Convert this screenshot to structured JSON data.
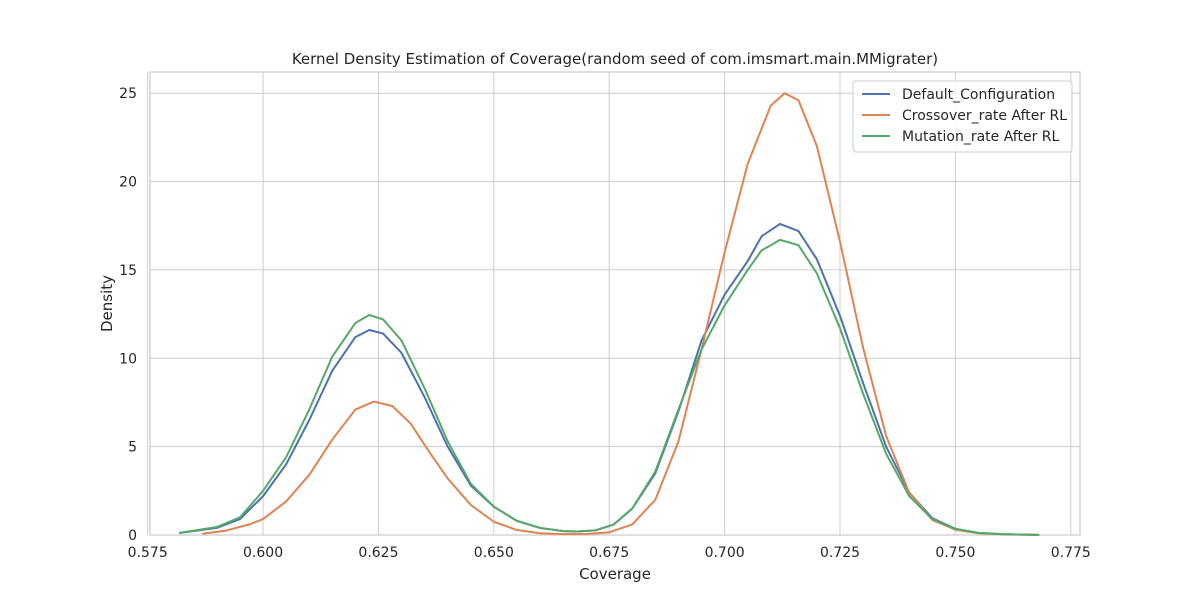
{
  "chart_data": {
    "type": "line",
    "title": "Kernel Density Estimation of Coverage(random seed of com.imsmart.main.MMigrater)",
    "xlabel": "Coverage",
    "ylabel": "Density",
    "xlim": [
      0.5755,
      0.777
    ],
    "ylim": [
      0,
      26.2
    ],
    "xticks": [
      0.575,
      0.6,
      0.625,
      0.65,
      0.675,
      0.7,
      0.725,
      0.75,
      0.775
    ],
    "xtick_labels": [
      "0.575",
      "0.600",
      "0.625",
      "0.650",
      "0.675",
      "0.700",
      "0.725",
      "0.750",
      "0.775"
    ],
    "yticks": [
      0,
      5,
      10,
      15,
      20,
      25
    ],
    "ytick_labels": [
      "0",
      "5",
      "10",
      "15",
      "20",
      "25"
    ],
    "grid": true,
    "legend_position": "top-right",
    "series": [
      {
        "name": "Default_Configuration",
        "color": "#4c72b0",
        "x": [
          0.582,
          0.59,
          0.595,
          0.6,
          0.605,
          0.61,
          0.615,
          0.62,
          0.623,
          0.626,
          0.63,
          0.635,
          0.64,
          0.645,
          0.65,
          0.655,
          0.66,
          0.665,
          0.668,
          0.672,
          0.676,
          0.68,
          0.685,
          0.69,
          0.695,
          0.7,
          0.705,
          0.708,
          0.712,
          0.716,
          0.72,
          0.725,
          0.73,
          0.735,
          0.74,
          0.745,
          0.75,
          0.755,
          0.76,
          0.765,
          0.768
        ],
        "y": [
          0.12,
          0.4,
          0.9,
          2.2,
          4.0,
          6.5,
          9.3,
          11.2,
          11.6,
          11.4,
          10.3,
          7.8,
          5.0,
          2.8,
          1.6,
          0.8,
          0.4,
          0.22,
          0.2,
          0.26,
          0.6,
          1.5,
          3.5,
          7.0,
          11.0,
          13.6,
          15.5,
          16.9,
          17.6,
          17.2,
          15.6,
          12.4,
          8.6,
          5.0,
          2.4,
          0.95,
          0.35,
          0.12,
          0.05,
          0.02,
          0.01
        ]
      },
      {
        "name": "Crossover_rate After RL",
        "color": "#dd8452",
        "x": [
          0.587,
          0.592,
          0.597,
          0.6,
          0.605,
          0.61,
          0.615,
          0.62,
          0.624,
          0.628,
          0.632,
          0.636,
          0.64,
          0.645,
          0.65,
          0.655,
          0.66,
          0.665,
          0.67,
          0.675,
          0.68,
          0.685,
          0.69,
          0.695,
          0.7,
          0.705,
          0.71,
          0.713,
          0.716,
          0.72,
          0.725,
          0.73,
          0.735,
          0.74,
          0.745,
          0.75,
          0.755,
          0.76,
          0.765,
          0.768
        ],
        "y": [
          0.08,
          0.25,
          0.6,
          0.9,
          1.9,
          3.4,
          5.4,
          7.1,
          7.55,
          7.3,
          6.3,
          4.7,
          3.2,
          1.7,
          0.75,
          0.28,
          0.1,
          0.05,
          0.06,
          0.15,
          0.6,
          2.0,
          5.3,
          10.5,
          16.0,
          21.0,
          24.3,
          25.0,
          24.6,
          22.0,
          16.6,
          10.6,
          5.6,
          2.4,
          0.85,
          0.3,
          0.1,
          0.04,
          0.02,
          0.01
        ]
      },
      {
        "name": "Mutation_rate After RL",
        "color": "#55a868",
        "x": [
          0.582,
          0.59,
          0.595,
          0.6,
          0.605,
          0.61,
          0.615,
          0.62,
          0.623,
          0.626,
          0.63,
          0.635,
          0.64,
          0.645,
          0.65,
          0.655,
          0.66,
          0.665,
          0.668,
          0.672,
          0.676,
          0.68,
          0.685,
          0.69,
          0.695,
          0.7,
          0.705,
          0.708,
          0.712,
          0.716,
          0.72,
          0.725,
          0.73,
          0.735,
          0.74,
          0.745,
          0.75,
          0.755,
          0.76,
          0.765,
          0.768
        ],
        "y": [
          0.12,
          0.45,
          1.0,
          2.5,
          4.4,
          7.1,
          10.1,
          12.0,
          12.45,
          12.2,
          11.0,
          8.3,
          5.3,
          2.9,
          1.6,
          0.8,
          0.4,
          0.22,
          0.2,
          0.26,
          0.6,
          1.5,
          3.6,
          7.1,
          10.5,
          13.0,
          15.0,
          16.1,
          16.7,
          16.4,
          14.8,
          11.7,
          8.0,
          4.6,
          2.2,
          0.9,
          0.35,
          0.12,
          0.05,
          0.02,
          0.01
        ]
      }
    ]
  }
}
